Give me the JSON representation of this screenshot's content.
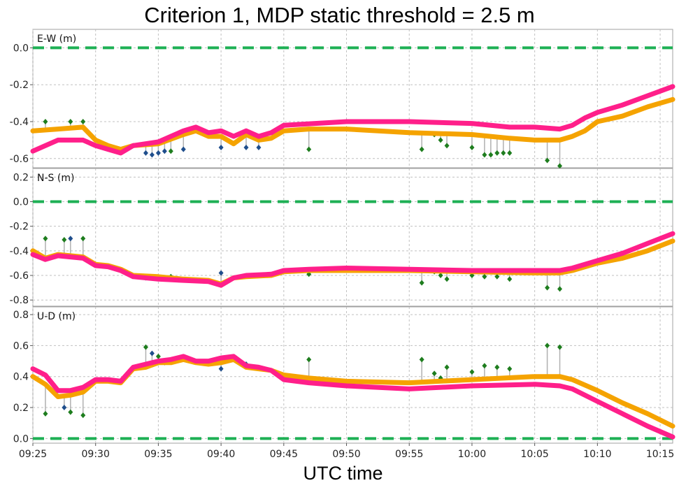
{
  "colors": {
    "series_a": "#f5a300",
    "series_b": "#ff1f8a",
    "zero_line": "#1eb055",
    "outlier_green": "#1e7d1e",
    "outlier_blue": "#1f4e8c",
    "stem": "#b0b0b0",
    "grid": "#c0c0c0"
  },
  "chart_data": {
    "type": "line",
    "title": "Criterion 1, MDP static threshold =  2.5 m",
    "xlabel": "UTC time",
    "xlim": [
      "09:25",
      "10:16"
    ],
    "x_ticks": [
      "09:25",
      "09:30",
      "09:35",
      "09:40",
      "09:45",
      "09:50",
      "09:55",
      "10:00",
      "10:05",
      "10:10",
      "10:15"
    ],
    "grid": true,
    "panels": [
      {
        "name": "E-W (m)",
        "ylim": [
          -0.65,
          0.1
        ],
        "y_ticks": [
          "0.0",
          "-0.2",
          "-0.4",
          "-0.6"
        ],
        "zero_line": 0.0,
        "series": [
          {
            "color": "series_a",
            "x": [
              "09:25",
              "09:27",
              "09:29",
              "09:30",
              "09:31",
              "09:32",
              "09:33",
              "09:35",
              "09:37",
              "09:38",
              "09:39",
              "09:40",
              "09:41",
              "09:42",
              "09:43",
              "09:44",
              "09:45",
              "09:47",
              "09:50",
              "09:55",
              "10:00",
              "10:03",
              "10:05",
              "10:07",
              "10:08",
              "10:09",
              "10:10",
              "10:12",
              "10:14",
              "10:16"
            ],
            "y": [
              -0.45,
              -0.44,
              -0.43,
              -0.5,
              -0.53,
              -0.55,
              -0.53,
              -0.52,
              -0.47,
              -0.45,
              -0.48,
              -0.48,
              -0.52,
              -0.47,
              -0.5,
              -0.49,
              -0.45,
              -0.44,
              -0.44,
              -0.46,
              -0.47,
              -0.49,
              -0.5,
              -0.5,
              -0.48,
              -0.45,
              -0.4,
              -0.37,
              -0.32,
              -0.28
            ]
          },
          {
            "color": "series_b",
            "x": [
              "09:25",
              "09:26",
              "09:27",
              "09:29",
              "09:30",
              "09:31",
              "09:32",
              "09:33",
              "09:35",
              "09:36",
              "09:37",
              "09:38",
              "09:39",
              "09:40",
              "09:41",
              "09:42",
              "09:43",
              "09:44",
              "09:45",
              "09:50",
              "09:55",
              "10:00",
              "10:03",
              "10:05",
              "10:07",
              "10:08",
              "10:09",
              "10:10",
              "10:12",
              "10:14",
              "10:16"
            ],
            "y": [
              -0.56,
              -0.53,
              -0.5,
              -0.5,
              -0.53,
              -0.55,
              -0.57,
              -0.53,
              -0.51,
              -0.48,
              -0.45,
              -0.43,
              -0.46,
              -0.45,
              -0.48,
              -0.45,
              -0.48,
              -0.46,
              -0.42,
              -0.4,
              -0.4,
              -0.41,
              -0.43,
              -0.43,
              -0.44,
              -0.42,
              -0.38,
              -0.35,
              -0.31,
              -0.26,
              -0.21
            ]
          }
        ],
        "outliers": [
          {
            "x": "09:26",
            "y": -0.4,
            "c": "g"
          },
          {
            "x": "09:28",
            "y": -0.4,
            "c": "g"
          },
          {
            "x": "09:29",
            "y": -0.4,
            "c": "g"
          },
          {
            "x": "09:34",
            "y": -0.57,
            "c": "b"
          },
          {
            "x": "09:34.5",
            "y": -0.58,
            "c": "b"
          },
          {
            "x": "09:35",
            "y": -0.57,
            "c": "b"
          },
          {
            "x": "09:35.5",
            "y": -0.56,
            "c": "b"
          },
          {
            "x": "09:36",
            "y": -0.56,
            "c": "g"
          },
          {
            "x": "09:37",
            "y": -0.55,
            "c": "b"
          },
          {
            "x": "09:40",
            "y": -0.54,
            "c": "b"
          },
          {
            "x": "09:42",
            "y": -0.54,
            "c": "b"
          },
          {
            "x": "09:43",
            "y": -0.54,
            "c": "b"
          },
          {
            "x": "09:47",
            "y": -0.55,
            "c": "g"
          },
          {
            "x": "09:56",
            "y": -0.55,
            "c": "g"
          },
          {
            "x": "09:57",
            "y": -0.47,
            "c": "g"
          },
          {
            "x": "09:57.5",
            "y": -0.5,
            "c": "g"
          },
          {
            "x": "09:58",
            "y": -0.53,
            "c": "g"
          },
          {
            "x": "10:00",
            "y": -0.54,
            "c": "g"
          },
          {
            "x": "10:01",
            "y": -0.58,
            "c": "g"
          },
          {
            "x": "10:01.5",
            "y": -0.58,
            "c": "g"
          },
          {
            "x": "10:02",
            "y": -0.57,
            "c": "g"
          },
          {
            "x": "10:02.5",
            "y": -0.57,
            "c": "g"
          },
          {
            "x": "10:03",
            "y": -0.57,
            "c": "g"
          },
          {
            "x": "10:06",
            "y": -0.61,
            "c": "g"
          },
          {
            "x": "10:07",
            "y": -0.64,
            "c": "g"
          }
        ]
      },
      {
        "name": "N-S (m)",
        "ylim": [
          -0.85,
          0.27
        ],
        "y_ticks": [
          "0.2",
          "0.0",
          "-0.2",
          "-0.4",
          "-0.6",
          "-0.8"
        ],
        "zero_line": 0.0,
        "series": [
          {
            "color": "series_a",
            "x": [
              "09:25",
              "09:26",
              "09:27",
              "09:29",
              "09:30",
              "09:31",
              "09:32",
              "09:33",
              "09:35",
              "09:37",
              "09:39",
              "09:40",
              "09:41",
              "09:42",
              "09:44",
              "09:45",
              "09:47",
              "09:50",
              "09:55",
              "10:00",
              "10:05",
              "10:07",
              "10:08",
              "10:10",
              "10:12",
              "10:14",
              "10:16"
            ],
            "y": [
              -0.4,
              -0.46,
              -0.43,
              -0.45,
              -0.51,
              -0.52,
              -0.55,
              -0.6,
              -0.61,
              -0.63,
              -0.64,
              -0.67,
              -0.62,
              -0.61,
              -0.6,
              -0.57,
              -0.56,
              -0.56,
              -0.56,
              -0.57,
              -0.58,
              -0.58,
              -0.56,
              -0.5,
              -0.46,
              -0.4,
              -0.32
            ]
          },
          {
            "color": "series_b",
            "x": [
              "09:25",
              "09:26",
              "09:27",
              "09:29",
              "09:30",
              "09:31",
              "09:32",
              "09:33",
              "09:35",
              "09:37",
              "09:39",
              "09:40",
              "09:41",
              "09:42",
              "09:44",
              "09:45",
              "09:47",
              "09:50",
              "09:55",
              "10:00",
              "10:05",
              "10:07",
              "10:08",
              "10:10",
              "10:12",
              "10:14",
              "10:16"
            ],
            "y": [
              -0.43,
              -0.47,
              -0.44,
              -0.46,
              -0.52,
              -0.53,
              -0.56,
              -0.61,
              -0.63,
              -0.64,
              -0.65,
              -0.68,
              -0.62,
              -0.6,
              -0.59,
              -0.56,
              -0.55,
              -0.54,
              -0.55,
              -0.56,
              -0.56,
              -0.56,
              -0.54,
              -0.48,
              -0.42,
              -0.34,
              -0.26
            ]
          }
        ],
        "outliers": [
          {
            "x": "09:26",
            "y": -0.3,
            "c": "g"
          },
          {
            "x": "09:27.5",
            "y": -0.31,
            "c": "g"
          },
          {
            "x": "09:28",
            "y": -0.3,
            "c": "b"
          },
          {
            "x": "09:29",
            "y": -0.3,
            "c": "g"
          },
          {
            "x": "09:34",
            "y": -0.62,
            "c": "b"
          },
          {
            "x": "09:35",
            "y": -0.62,
            "c": "b"
          },
          {
            "x": "09:36",
            "y": -0.61,
            "c": "g"
          },
          {
            "x": "09:40",
            "y": -0.58,
            "c": "b"
          },
          {
            "x": "09:47",
            "y": -0.59,
            "c": "g"
          },
          {
            "x": "09:56",
            "y": -0.66,
            "c": "g"
          },
          {
            "x": "09:57",
            "y": -0.57,
            "c": "g"
          },
          {
            "x": "09:57.5",
            "y": -0.6,
            "c": "g"
          },
          {
            "x": "09:58",
            "y": -0.63,
            "c": "g"
          },
          {
            "x": "10:00",
            "y": -0.6,
            "c": "g"
          },
          {
            "x": "10:01",
            "y": -0.61,
            "c": "g"
          },
          {
            "x": "10:02",
            "y": -0.61,
            "c": "g"
          },
          {
            "x": "10:03",
            "y": -0.63,
            "c": "g"
          },
          {
            "x": "10:06",
            "y": -0.7,
            "c": "g"
          },
          {
            "x": "10:07",
            "y": -0.71,
            "c": "g"
          }
        ]
      },
      {
        "name": "U-D (m)",
        "ylim": [
          -0.03,
          0.85
        ],
        "y_ticks": [
          "0.8",
          "0.6",
          "0.4",
          "0.2",
          "0.0"
        ],
        "zero_line": 0.0,
        "series": [
          {
            "color": "series_a",
            "x": [
              "09:25",
              "09:26",
              "09:27",
              "09:28",
              "09:29",
              "09:30",
              "09:31",
              "09:32",
              "09:33",
              "09:34",
              "09:35",
              "09:36",
              "09:37",
              "09:38",
              "09:39",
              "09:40",
              "09:41",
              "09:42",
              "09:43",
              "09:44",
              "09:45",
              "09:47",
              "09:50",
              "09:55",
              "10:00",
              "10:05",
              "10:07",
              "10:08",
              "10:10",
              "10:12",
              "10:14",
              "10:16"
            ],
            "y": [
              0.4,
              0.35,
              0.27,
              0.28,
              0.3,
              0.37,
              0.37,
              0.36,
              0.45,
              0.46,
              0.49,
              0.49,
              0.51,
              0.49,
              0.48,
              0.49,
              0.51,
              0.46,
              0.45,
              0.44,
              0.41,
              0.39,
              0.37,
              0.36,
              0.38,
              0.4,
              0.4,
              0.38,
              0.31,
              0.23,
              0.16,
              0.08
            ]
          },
          {
            "color": "series_b",
            "x": [
              "09:25",
              "09:26",
              "09:27",
              "09:28",
              "09:29",
              "09:30",
              "09:31",
              "09:32",
              "09:33",
              "09:34",
              "09:35",
              "09:36",
              "09:37",
              "09:38",
              "09:39",
              "09:40",
              "09:41",
              "09:42",
              "09:43",
              "09:44",
              "09:45",
              "09:47",
              "09:50",
              "09:55",
              "10:00",
              "10:05",
              "10:07",
              "10:08",
              "10:10",
              "10:12",
              "10:14",
              "10:16"
            ],
            "y": [
              0.45,
              0.41,
              0.31,
              0.31,
              0.33,
              0.38,
              0.38,
              0.37,
              0.46,
              0.48,
              0.5,
              0.51,
              0.53,
              0.5,
              0.5,
              0.52,
              0.53,
              0.47,
              0.46,
              0.44,
              0.38,
              0.36,
              0.34,
              0.32,
              0.34,
              0.35,
              0.34,
              0.32,
              0.24,
              0.16,
              0.08,
              0.01
            ]
          }
        ],
        "outliers": [
          {
            "x": "09:26",
            "y": 0.16,
            "c": "g"
          },
          {
            "x": "09:27.5",
            "y": 0.2,
            "c": "b"
          },
          {
            "x": "09:28",
            "y": 0.17,
            "c": "g"
          },
          {
            "x": "09:29",
            "y": 0.15,
            "c": "g"
          },
          {
            "x": "09:34",
            "y": 0.59,
            "c": "g"
          },
          {
            "x": "09:34.5",
            "y": 0.55,
            "c": "b"
          },
          {
            "x": "09:35",
            "y": 0.53,
            "c": "g"
          },
          {
            "x": "09:35.5",
            "y": 0.49,
            "c": "b"
          },
          {
            "x": "09:40",
            "y": 0.45,
            "c": "b"
          },
          {
            "x": "09:42",
            "y": 0.48,
            "c": "b"
          },
          {
            "x": "09:47",
            "y": 0.51,
            "c": "g"
          },
          {
            "x": "09:56",
            "y": 0.51,
            "c": "g"
          },
          {
            "x": "09:57",
            "y": 0.42,
            "c": "g"
          },
          {
            "x": "09:57.5",
            "y": 0.39,
            "c": "g"
          },
          {
            "x": "09:58",
            "y": 0.46,
            "c": "g"
          },
          {
            "x": "10:00",
            "y": 0.43,
            "c": "g"
          },
          {
            "x": "10:01",
            "y": 0.47,
            "c": "g"
          },
          {
            "x": "10:02",
            "y": 0.46,
            "c": "g"
          },
          {
            "x": "10:03",
            "y": 0.45,
            "c": "g"
          },
          {
            "x": "10:06",
            "y": 0.6,
            "c": "g"
          },
          {
            "x": "10:07",
            "y": 0.59,
            "c": "g"
          }
        ]
      }
    ]
  }
}
